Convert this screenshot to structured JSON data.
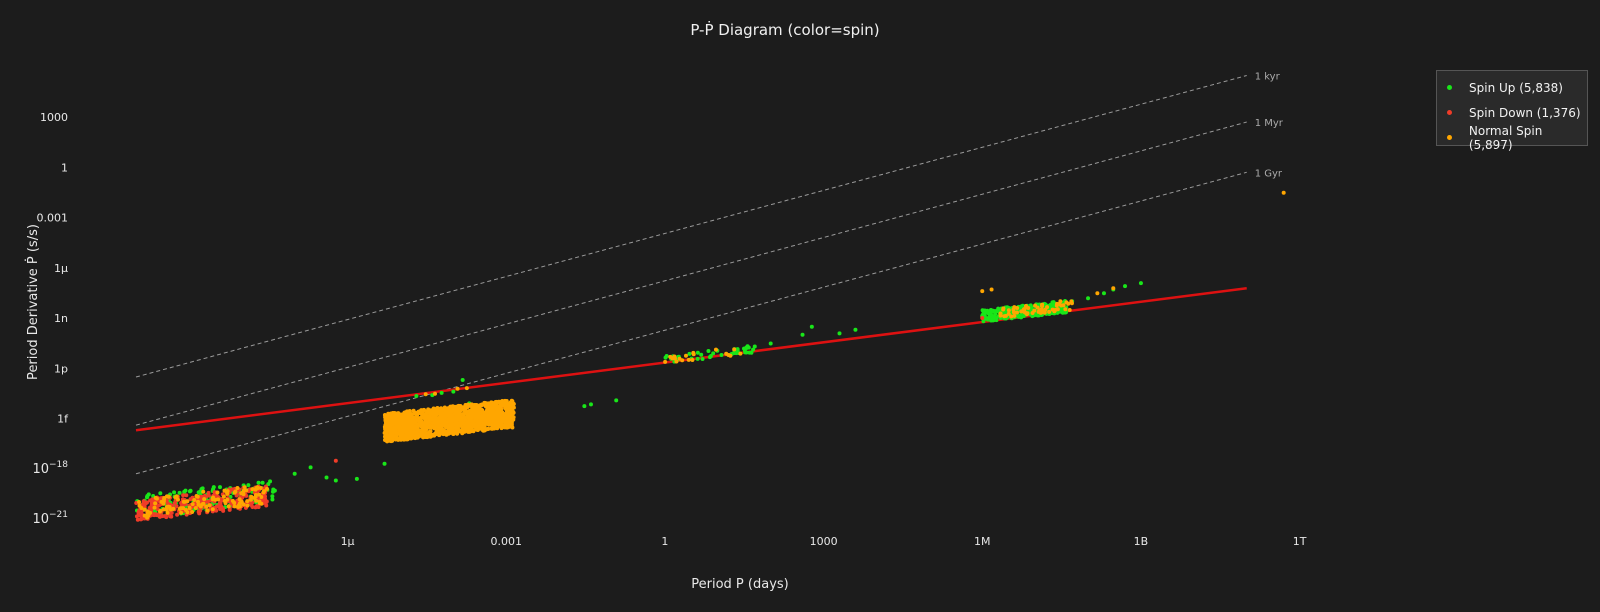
{
  "chart_data": {
    "type": "scatter",
    "title": "P-Ṗ Diagram (color=spin)",
    "xlabel": "Period P (days)",
    "ylabel": "Period Derivative Ṗ (s/s)",
    "x_scale": "log",
    "y_scale": "log",
    "xlim": [
      1e-10,
      10000000000000.0
    ],
    "ylim": [
      1e-22,
      100000000.0
    ],
    "x_ticks": [
      {
        "value": 1e-06,
        "label": "1µ"
      },
      {
        "value": 0.001,
        "label": "0.001"
      },
      {
        "value": 1,
        "label": "1"
      },
      {
        "value": 1000,
        "label": "1000"
      },
      {
        "value": 1000000.0,
        "label": "1M"
      },
      {
        "value": 1000000000.0,
        "label": "1B"
      },
      {
        "value": 1000000000000.0,
        "label": "1T"
      }
    ],
    "y_ticks": [
      {
        "value": 1e-21,
        "label": "10",
        "sup": "−21"
      },
      {
        "value": 1e-18,
        "label": "10",
        "sup": "−18"
      },
      {
        "value": 1e-15,
        "label": "1f",
        "sup": ""
      },
      {
        "value": 1e-12,
        "label": "1p",
        "sup": ""
      },
      {
        "value": 1e-09,
        "label": "1n",
        "sup": ""
      },
      {
        "value": 1e-06,
        "label": "1µ",
        "sup": ""
      },
      {
        "value": 0.001,
        "label": "0.001",
        "sup": ""
      },
      {
        "value": 1,
        "label": "1",
        "sup": ""
      },
      {
        "value": 1000,
        "label": "1000",
        "sup": ""
      }
    ],
    "grid": false,
    "legend_position": "top-right",
    "age_lines": [
      {
        "label": "1 kyr",
        "x": [
          1e-10,
          100000000000.0
        ],
        "y": [
          3e-13,
          300000.0
        ]
      },
      {
        "label": "1 Myr",
        "x": [
          1e-10,
          100000000000.0
        ],
        "y": [
          4e-16,
          500.0
        ]
      },
      {
        "label": "1 Gyr",
        "x": [
          1e-10,
          100000000000.0
        ],
        "y": [
          5e-19,
          0.5
        ]
      }
    ],
    "reference_line": {
      "x": [
        1e-10,
        100000000000.0
      ],
      "y": [
        2e-16,
        6e-08
      ],
      "color": "#dd1111"
    },
    "series": [
      {
        "name": "Spin Up (5,838)",
        "color": "#19e619",
        "clusters": [
          {
            "x_range": [
              1e-10,
              5e-08
            ],
            "y_range": [
              1e-21,
              1e-19
            ],
            "slope": 1.0,
            "n": 160
          },
          {
            "x_range": [
              1000000.0,
              40000000.0
            ],
            "y_range": [
              6e-10,
              6e-09
            ],
            "slope": 1.0,
            "n": 280
          },
          {
            "x_range": [
              1,
              50
            ],
            "y_range": [
              2e-12,
              1e-11
            ],
            "slope": 1.0,
            "n": 40
          }
        ],
        "points": [
          {
            "x": 2e-05,
            "y": 2.2e-14
          },
          {
            "x": 4e-05,
            "y": 2.5e-14
          },
          {
            "x": 6e-05,
            "y": 3.4e-14
          },
          {
            "x": 0.0001,
            "y": 4e-14
          },
          {
            "x": 0.00015,
            "y": 2e-13
          },
          {
            "x": 0.0002,
            "y": 8e-15
          },
          {
            "x": 0.0003,
            "y": 1.8e-15
          },
          {
            "x": 0.03,
            "y": 5.5e-15
          },
          {
            "x": 0.04,
            "y": 7e-15
          },
          {
            "x": 0.12,
            "y": 1.2e-14
          },
          {
            "x": 1e-07,
            "y": 5e-19
          },
          {
            "x": 2e-07,
            "y": 1.2e-18
          },
          {
            "x": 4e-07,
            "y": 3e-19
          },
          {
            "x": 6e-07,
            "y": 2e-19
          },
          {
            "x": 1.5e-06,
            "y": 2.5e-19
          },
          {
            "x": 5e-06,
            "y": 2e-18
          },
          {
            "x": 20,
            "y": 8e-12
          },
          {
            "x": 50,
            "y": 2e-11
          },
          {
            "x": 100,
            "y": 3e-11
          },
          {
            "x": 400,
            "y": 1e-10
          },
          {
            "x": 600,
            "y": 3e-10
          },
          {
            "x": 2000,
            "y": 1.2e-10
          },
          {
            "x": 4000,
            "y": 2e-10
          },
          {
            "x": 50000000.0,
            "y": 1e-08
          },
          {
            "x": 100000000.0,
            "y": 1.5e-08
          },
          {
            "x": 200000000.0,
            "y": 3e-08
          },
          {
            "x": 300000000.0,
            "y": 5e-08
          },
          {
            "x": 500000000.0,
            "y": 8e-08
          },
          {
            "x": 1000000000.0,
            "y": 1.2e-07
          }
        ]
      },
      {
        "name": "Spin Down (1,376)",
        "color": "#f03c28",
        "clusters": [
          {
            "x_range": [
              1e-10,
              3e-08
            ],
            "y_range": [
              8e-22,
              5e-20
            ],
            "slope": 1.0,
            "n": 300
          }
        ],
        "points": [
          {
            "x": 0.0006,
            "y": 3e-15
          },
          {
            "x": 0.0008,
            "y": 4e-15
          },
          {
            "x": 0.001,
            "y": 5e-15
          },
          {
            "x": 6e-07,
            "y": 3e-18
          },
          {
            "x": 1000000.0,
            "y": 1e-09
          }
        ]
      },
      {
        "name": "Normal Spin (5,897)",
        "color": "#ffa600",
        "clusters": [
          {
            "x_range": [
              5e-06,
              0.0014
            ],
            "y_range": [
              4e-17,
              1e-14
            ],
            "slope": 1.0,
            "n": 1400
          },
          {
            "x_range": [
              1e-10,
              3e-08
            ],
            "y_range": [
              1e-21,
              5e-20
            ],
            "slope": 1.0,
            "n": 120
          },
          {
            "x_range": [
              2000000.0,
              50000000.0
            ],
            "y_range": [
              1e-09,
              6e-09
            ],
            "slope": 1.0,
            "n": 60
          },
          {
            "x_range": [
              1,
              30
            ],
            "y_range": [
              2e-12,
              1e-11
            ],
            "slope": 1.0,
            "n": 20
          }
        ],
        "points": [
          {
            "x": 3e-05,
            "y": 2.8e-14
          },
          {
            "x": 4.5e-05,
            "y": 3e-14
          },
          {
            "x": 0.00012,
            "y": 6e-14
          },
          {
            "x": 0.00018,
            "y": 6.5e-14
          },
          {
            "x": 1000000.0,
            "y": 4e-08
          },
          {
            "x": 1500000.0,
            "y": 5e-08
          },
          {
            "x": 30000000.0,
            "y": 1e-08
          },
          {
            "x": 150000000.0,
            "y": 3e-08
          },
          {
            "x": 300000000.0,
            "y": 6e-08
          },
          {
            "x": 500000000000.0,
            "y": 0.03
          }
        ]
      }
    ]
  }
}
